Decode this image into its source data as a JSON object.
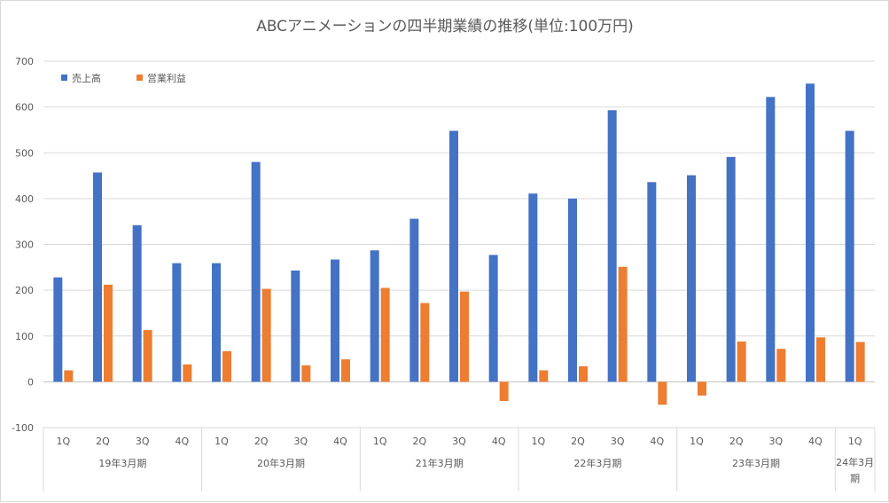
{
  "chart_data": {
    "type": "bar",
    "title": "ABCアニメーションの四半期業績の推移(単位:100万円)",
    "xlabel": "",
    "ylabel": "",
    "ylim": [
      -100,
      700
    ],
    "yticks": [
      -100,
      0,
      100,
      200,
      300,
      400,
      500,
      600,
      700
    ],
    "grid": true,
    "legend_position": "top-left",
    "categories": [
      "1Q",
      "2Q",
      "3Q",
      "4Q",
      "1Q",
      "2Q",
      "3Q",
      "4Q",
      "1Q",
      "2Q",
      "3Q",
      "4Q",
      "1Q",
      "2Q",
      "3Q",
      "4Q",
      "1Q",
      "2Q",
      "3Q",
      "4Q",
      "1Q"
    ],
    "groups": [
      {
        "label": "19年3月期",
        "count": 4
      },
      {
        "label": "20年3月期",
        "count": 4
      },
      {
        "label": "21年3月期",
        "count": 4
      },
      {
        "label": "22年3月期",
        "count": 4
      },
      {
        "label": "23年3月期",
        "count": 4
      },
      {
        "label": "24年3月期",
        "count": 1
      }
    ],
    "series": [
      {
        "name": "売上高",
        "color": "#4472c4",
        "values": [
          228,
          457,
          342,
          259,
          259,
          480,
          243,
          267,
          287,
          356,
          548,
          277,
          411,
          400,
          593,
          436,
          451,
          491,
          622,
          651,
          548
        ]
      },
      {
        "name": "営業利益",
        "color": "#ed7d31",
        "values": [
          25,
          212,
          113,
          38,
          67,
          203,
          36,
          49,
          205,
          172,
          197,
          -42,
          25,
          34,
          251,
          -50,
          -30,
          88,
          72,
          97,
          87
        ]
      }
    ]
  }
}
